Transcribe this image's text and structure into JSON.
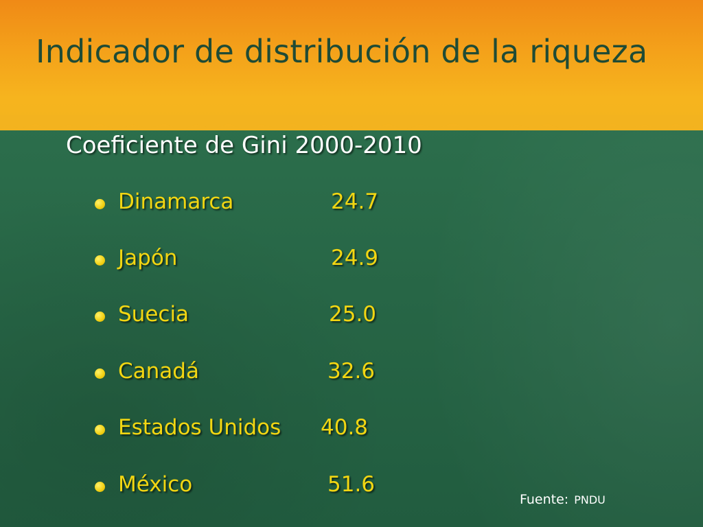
{
  "slide": {
    "title": "Indicador de distribución de la riqueza",
    "subtitle": "Coeficiente de Gini 2000-2010",
    "items": [
      {
        "country": "Dinamarca",
        "value": "24.7"
      },
      {
        "country": "Japón",
        "value": "24.9"
      },
      {
        "country": "Suecia",
        "value": "25.0"
      },
      {
        "country": "Canadá",
        "value": "32.6"
      },
      {
        "country": "Estados Unidos",
        "value": "40.8"
      },
      {
        "country": "México",
        "value": "51.6"
      }
    ],
    "source_label": "Fuente:",
    "source_org": "PNDU"
  },
  "colors": {
    "band_orange": "#f4a21a",
    "background_green": "#2b6a4a",
    "title_text": "#1f4b35",
    "list_text": "#f2d612",
    "subtitle_text": "#ffffff"
  }
}
